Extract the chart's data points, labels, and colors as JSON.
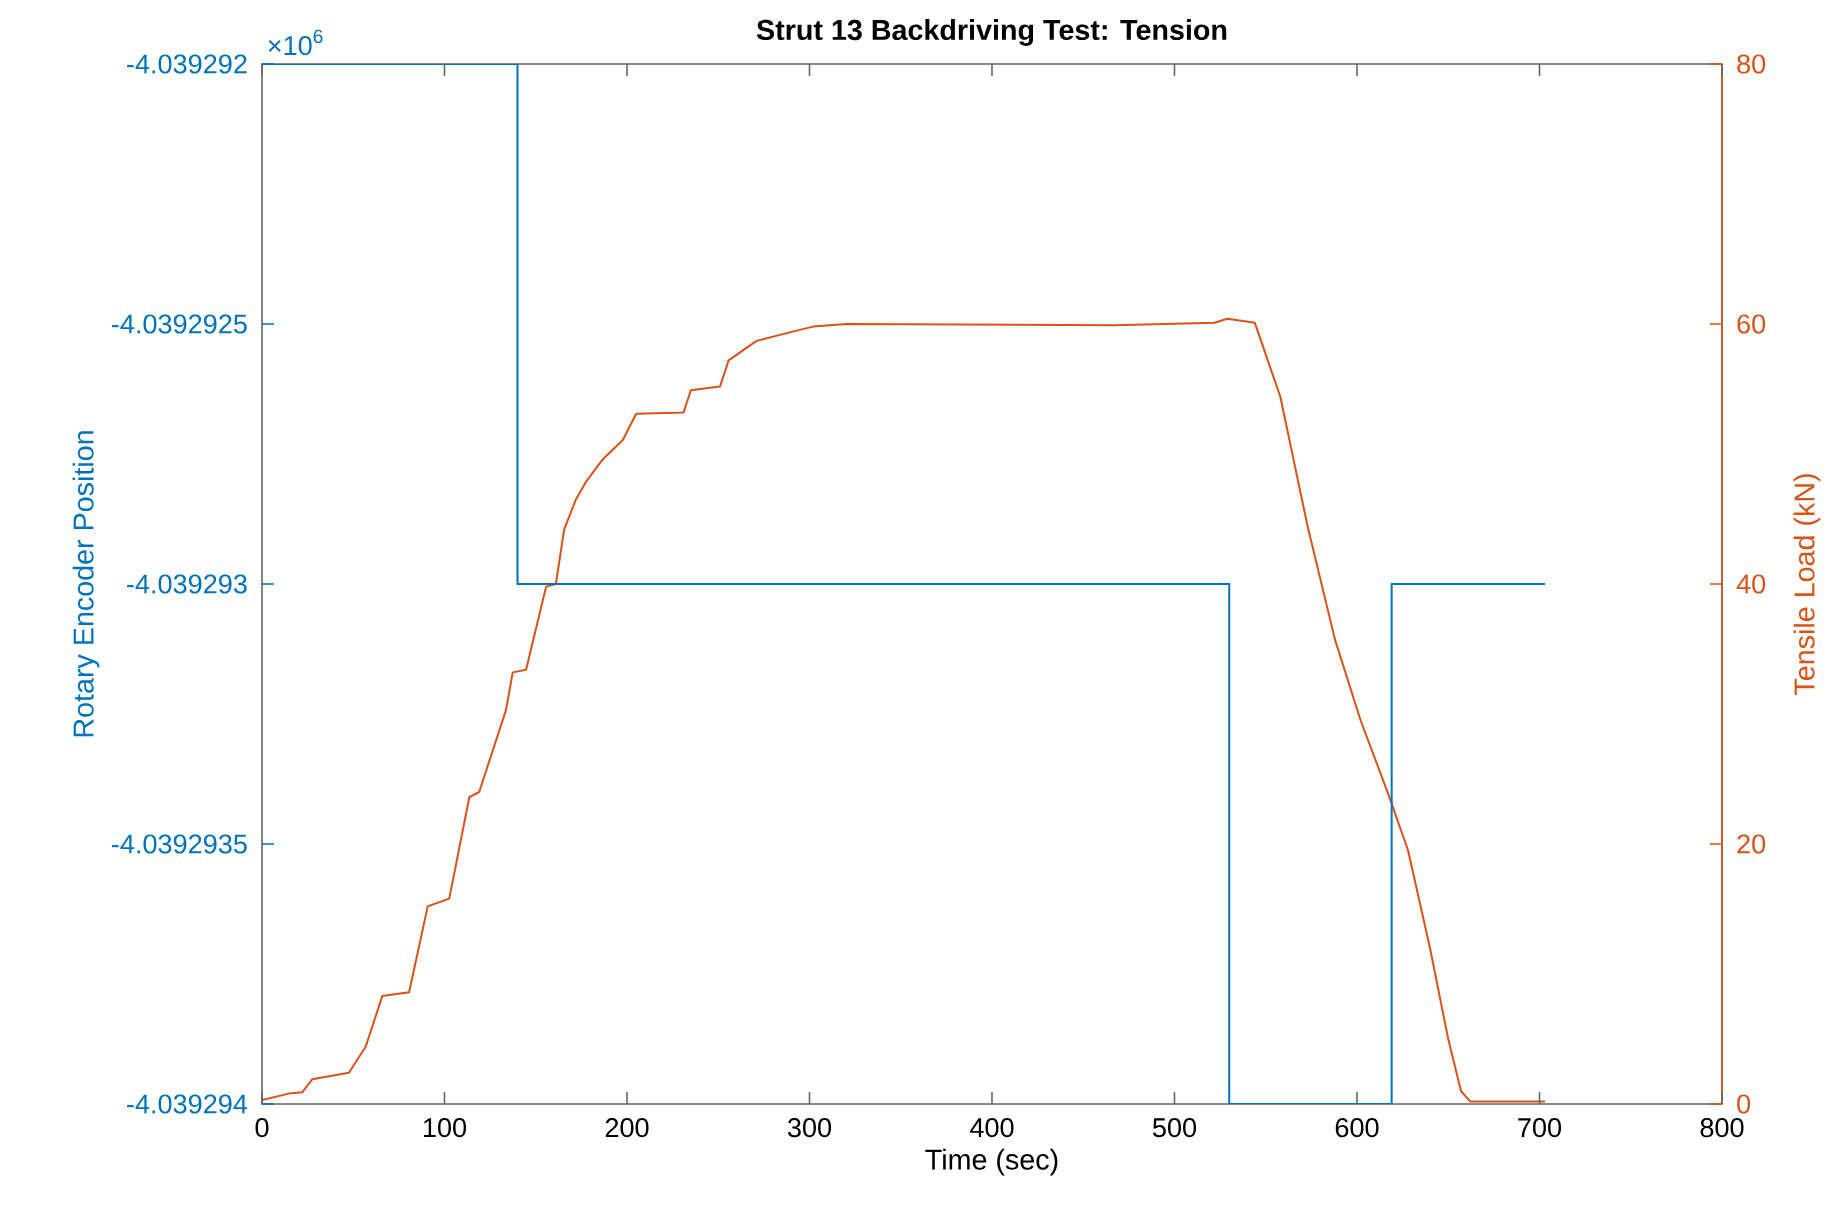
{
  "chart_data": {
    "type": "line",
    "title": "Strut 13 Backdriving Test: Tension",
    "xlabel": "Time (sec)",
    "ylabel": "Rotary Encoder Position",
    "y2label": "Tensile Load (kN)",
    "annotations": [
      "×10$^{6}$"
    ],
    "xlim": [
      0,
      800
    ],
    "xticks": [
      0,
      100,
      200,
      300,
      400,
      500,
      600,
      700,
      800
    ],
    "ylim": [
      -4.039294,
      -4.039292
    ],
    "yticks": [
      -4.039294,
      -4.0392935,
      -4.039293,
      -4.0392925,
      -4.039292
    ],
    "y2lim": [
      0,
      80
    ],
    "y2ticks": [
      0,
      20,
      40,
      60,
      80
    ],
    "grid": false,
    "series": [
      {
        "type": "step",
        "color": "#0072bd",
        "x": [
          0,
          140,
          530,
          619,
          703
        ],
        "values": [
          -4.039292,
          -4.039293,
          -4.039294,
          -4.039293,
          -4.039293
        ]
      },
      {
        "axis": "y2",
        "color": "#d95319",
        "x": [
          0,
          14.7,
          22,
          27.5,
          47.6,
          56.8,
          65.9,
          80.6,
          90.8,
          102.6,
          113.6,
          119,
          133.7,
          137.4,
          144.7,
          155.7,
          161,
          165.6,
          172,
          177.7,
          186.8,
          197.8,
          205,
          231,
          235,
          251,
          255.7,
          271,
          287.5,
          302,
          320,
          467,
          522,
          529,
          544,
          558,
          573,
          588,
          602,
          617,
          628,
          640,
          650,
          657,
          662,
          700,
          703
        ],
        "values": [
          0.3,
          0.8,
          0.9,
          1.9,
          2.4,
          4.4,
          8.3,
          8.6,
          15.2,
          15.8,
          23.6,
          24,
          30.3,
          33.2,
          33.4,
          39.8,
          40,
          44.2,
          46.5,
          47.9,
          49.6,
          51.1,
          53.1,
          53.2,
          54.9,
          55.2,
          57.2,
          58.7,
          59.3,
          59.8,
          60,
          59.9,
          60.1,
          60.4,
          60.1,
          54.4,
          44.4,
          35.7,
          29.5,
          23.9,
          19.5,
          12,
          5,
          1,
          0.2,
          0.2,
          0.2
        ]
      }
    ]
  }
}
